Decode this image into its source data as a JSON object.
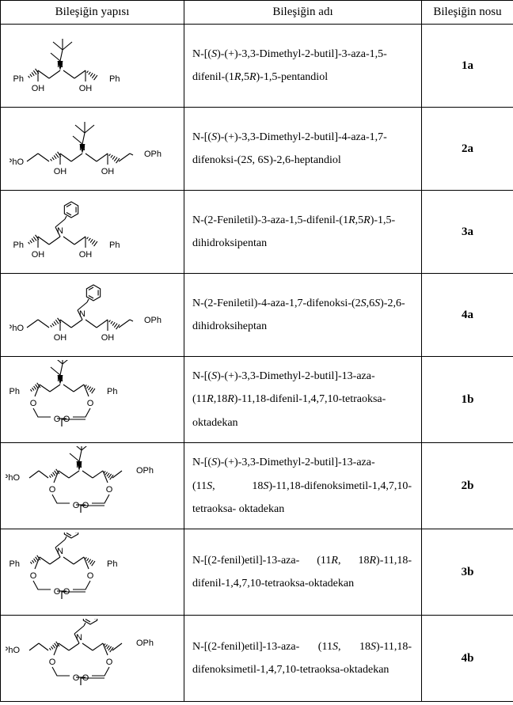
{
  "headers": {
    "structure": "Bileşiğin yapısı",
    "name": "Bileşiğin adı",
    "number": "Bileşiğin nosu"
  },
  "rows": [
    {
      "id": "1a",
      "name_html": "N-[(<span class='ital'>S</span>)-(+)-3,3-Dimethyl-2-butil]-3-aza-1,5-difenil-(1<span class='ital'>R</span>,5<span class='ital'>R</span>)-1,5-pentandiol",
      "no": "1a",
      "structure": "type_a_diol_tbu_ph"
    },
    {
      "id": "2a",
      "name_html": "N-[(<span class='ital'>S</span>)-(+)-3,3-Dimethyl-2-butil]-4-aza-1,7-difenoksi-(2<span class='ital'>S</span>, 6S)-2,6-heptandiol",
      "no": "2a",
      "structure": "type_a_diol_tbu_oph"
    },
    {
      "id": "3a",
      "name_html": "N-(2-Feniletil)-3-aza-1,5-difenil-(1<span class='ital'>R</span>,5<span class='ital'>R</span>)-1,5-dihidroksipentan",
      "no": "3a",
      "structure": "type_a_diol_phet_ph"
    },
    {
      "id": "4a",
      "name_html": "N-(2-Feniletil)-4-aza-1,7-difenoksi-(2<span class='ital'>S</span>,6<span class='ital'>S</span>)-2,6-dihidroksiheptan",
      "no": "4a",
      "structure": "type_a_diol_phet_oph"
    },
    {
      "id": "1b",
      "name_html": "N-[(<span class='ital'>S</span>)-(+)-3,3-Dimethyl-2-butil]-13-aza-(11<span class='ital'>R</span>,18<span class='ital'>R</span>)-11,18-difenil-1,4,7,10-tetraoksa- oktadekan",
      "no": "1b",
      "structure": "type_b_crown_tbu_ph"
    },
    {
      "id": "2b",
      "name_html": "N-[(<span class='ital'>S</span>)-(+)-3,3-Dimethyl-2-butil]-13-aza-(11<span class='ital'>S</span>,&nbsp;&nbsp;&nbsp;&nbsp;&nbsp;&nbsp;18<span class='ital'>S</span>)-11,18-difenoksimetil-1,4,7,10-tetraoksa- oktadekan",
      "no": "2b",
      "structure": "type_b_crown_tbu_oph"
    },
    {
      "id": "3b",
      "name_html": "N-[(2-fenil)etil]-13-aza-&nbsp;&nbsp;(11<span class='ital'>R</span>,&nbsp;&nbsp;18<span class='ital'>R</span>)-11,18-difenil-1,4,7,10-tetraoksa-oktadekan",
      "no": "3b",
      "structure": "type_b_crown_phet_ph"
    },
    {
      "id": "4b",
      "name_html": "N-[(2-fenil)etil]-13-aza-&nbsp;&nbsp;(11<span class='ital'>S</span>,&nbsp;&nbsp;18<span class='ital'>S</span>)-11,18-difenoksimetil-1,4,7,10-tetraoksa-oktadekan",
      "no": "4b",
      "structure": "type_b_crown_phet_oph"
    }
  ],
  "svg": {
    "stroke": "#000000",
    "stroke_width": 1.1,
    "font": "11px Arial, sans-serif"
  }
}
